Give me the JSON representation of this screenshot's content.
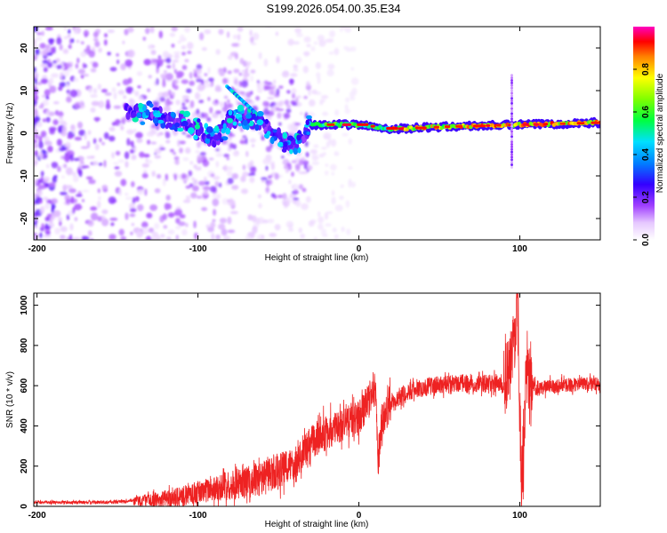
{
  "title": "S199.2026.054.00.35.E34",
  "chart_data": [
    {
      "type": "heatmap",
      "xlabel": "Height of straight line (km)",
      "ylabel": "Frequency (Hz)",
      "xlim": [
        -202,
        150
      ],
      "ylim": [
        -25,
        25
      ],
      "xticks": [
        -200,
        -100,
        0,
        100
      ],
      "yticks": [
        -20,
        -10,
        0,
        10,
        20
      ],
      "colorbar": {
        "label": "Normalized spectral amplitude",
        "range": [
          0.0,
          1.0
        ],
        "ticks": [
          0.0,
          0.2,
          0.4,
          0.6,
          0.8
        ]
      },
      "dominant_frequency_track": {
        "x": [
          -140,
          -120,
          -100,
          -90,
          -80,
          -70,
          -60,
          -50,
          -40,
          -30,
          -20,
          0,
          20,
          50,
          100,
          150
        ],
        "freq": [
          5,
          4,
          1,
          -2,
          3,
          4,
          2,
          -1,
          -3,
          2,
          2,
          2,
          1,
          1.5,
          2,
          2.5
        ]
      }
    },
    {
      "type": "line",
      "xlabel": "Height of straight line (km)",
      "ylabel": "SNR (10 * v/v)",
      "xlim": [
        -202,
        150
      ],
      "ylim": [
        0,
        1060
      ],
      "xticks": [
        -200,
        -100,
        0,
        100
      ],
      "yticks": [
        0,
        200,
        400,
        600,
        800,
        1000
      ],
      "color": "#ee2222",
      "envelope": {
        "x": [
          -202,
          -160,
          -130,
          -110,
          -90,
          -70,
          -55,
          -45,
          -35,
          -28,
          -22,
          -15,
          -8,
          0,
          6,
          10,
          12,
          14,
          20,
          30,
          45,
          60,
          80,
          90,
          94,
          97,
          99,
          101,
          104,
          110,
          120,
          150
        ],
        "y": [
          20,
          20,
          30,
          50,
          90,
          120,
          150,
          190,
          260,
          330,
          360,
          380,
          420,
          440,
          520,
          610,
          200,
          420,
          520,
          570,
          600,
          610,
          610,
          610,
          680,
          880,
          990,
          60,
          700,
          580,
          600,
          610
        ]
      }
    }
  ]
}
